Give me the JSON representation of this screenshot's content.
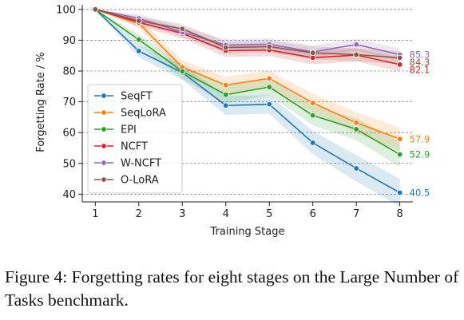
{
  "chart_data": {
    "type": "line",
    "xlabel": "Training Stage",
    "ylabel": "Forgetting Rate / %",
    "x": [
      1,
      2,
      3,
      4,
      5,
      6,
      7,
      8
    ],
    "xlim": [
      0.7,
      8.3
    ],
    "ylim": [
      37.5,
      101.5
    ],
    "yticks": [
      40,
      50,
      60,
      70,
      80,
      90,
      100
    ],
    "grid": "horizontal dashed",
    "legend_position": "lower-left",
    "series": [
      {
        "name": "SeqFT",
        "color": "#1f77b4",
        "values": [
          100,
          86.5,
          79.5,
          68.8,
          69.2,
          56.7,
          48.4,
          40.5
        ],
        "end_label": "40.5"
      },
      {
        "name": "SeqLoRA",
        "color": "#ff7f0e",
        "values": [
          100,
          95.5,
          81.2,
          75.4,
          77.6,
          69.6,
          63.2,
          57.9
        ],
        "end_label": "57.9"
      },
      {
        "name": "EPI",
        "color": "#2ca02c",
        "values": [
          100,
          90.2,
          79.9,
          72.3,
          74.8,
          65.6,
          61.1,
          52.9
        ],
        "end_label": "52.9"
      },
      {
        "name": "NCFT",
        "color": "#d62728",
        "values": [
          100,
          95.8,
          92.2,
          86.6,
          86.8,
          84.3,
          85.2,
          82.1
        ],
        "end_label": "82.1"
      },
      {
        "name": "W-NCFT",
        "color": "#9467bd",
        "values": [
          100,
          97.1,
          92.6,
          88.4,
          88.7,
          86.2,
          88.6,
          85.3
        ],
        "end_label": "85.3"
      },
      {
        "name": "O-LoRA",
        "color": "#8c564b",
        "values": [
          100,
          96.3,
          93.7,
          87.6,
          87.9,
          85.9,
          85.3,
          84.3
        ],
        "end_label": "84.3"
      }
    ]
  },
  "caption": "Figure 4: Forgetting rates for eight stages on the Large Number of Tasks benchmark."
}
